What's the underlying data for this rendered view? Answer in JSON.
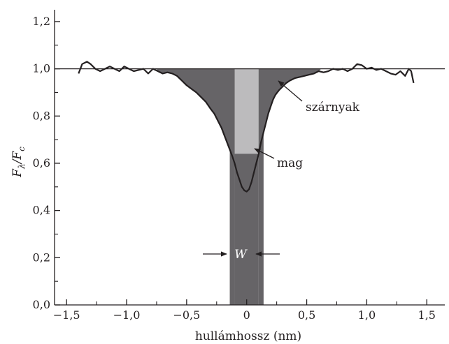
{
  "chart_data": {
    "type": "line",
    "title": "",
    "xlabel": "hullámhossz (nm)",
    "ylabel_main": "F",
    "ylabel_sub1": "λ",
    "ylabel_mid": "/F",
    "ylabel_sub2": "c",
    "xlim": [
      -1.6,
      1.65
    ],
    "ylim": [
      0.0,
      1.25
    ],
    "x_ticks": [
      -1.5,
      -1.0,
      -0.5,
      0.0,
      0.5,
      1.0,
      1.5
    ],
    "x_tick_labels": [
      "−1,5",
      "−1,0",
      "−0,5",
      "0",
      "0,5",
      "1,0",
      "1,5"
    ],
    "y_ticks": [
      0.0,
      0.2,
      0.4,
      0.6,
      0.8,
      1.0,
      1.2
    ],
    "y_tick_labels": [
      "0,0",
      "0,2",
      "0,4",
      "0,6",
      "0,8",
      "1,0",
      "1,2"
    ],
    "grid": false,
    "continuum_level": 1.0,
    "series": [
      {
        "x": [
          -1.4,
          -1.37,
          -1.33,
          -1.3,
          -1.26,
          -1.22,
          -1.18,
          -1.14,
          -1.1,
          -1.06,
          -1.02,
          -0.98,
          -0.94,
          -0.9,
          -0.86,
          -0.82,
          -0.78,
          -0.74,
          -0.7,
          -0.66,
          -0.62,
          -0.58,
          -0.54,
          -0.5,
          -0.46,
          -0.42,
          -0.38,
          -0.34,
          -0.3,
          -0.27,
          -0.24,
          -0.21,
          -0.18,
          -0.15,
          -0.12,
          -0.1,
          -0.08,
          -0.06,
          -0.04,
          -0.02,
          0.0,
          0.02,
          0.04,
          0.06,
          0.08,
          0.1,
          0.12,
          0.14,
          0.16,
          0.18,
          0.2,
          0.22,
          0.24,
          0.27,
          0.3,
          0.33,
          0.36,
          0.4,
          0.44,
          0.48,
          0.52,
          0.56,
          0.6,
          0.64,
          0.68,
          0.72,
          0.76,
          0.8,
          0.84,
          0.88,
          0.92,
          0.96,
          1.0,
          1.04,
          1.08,
          1.12,
          1.16,
          1.2,
          1.24,
          1.28,
          1.32,
          1.35,
          1.37,
          1.39
        ],
        "y": [
          0.98,
          1.02,
          1.03,
          1.02,
          1.0,
          0.99,
          1.0,
          1.01,
          1.0,
          0.99,
          1.01,
          1.0,
          0.99,
          0.995,
          1.0,
          0.98,
          1.0,
          0.99,
          0.98,
          0.985,
          0.98,
          0.97,
          0.95,
          0.93,
          0.915,
          0.9,
          0.88,
          0.86,
          0.83,
          0.81,
          0.78,
          0.75,
          0.71,
          0.67,
          0.63,
          0.6,
          0.56,
          0.53,
          0.5,
          0.485,
          0.48,
          0.49,
          0.52,
          0.56,
          0.6,
          0.64,
          0.69,
          0.73,
          0.77,
          0.81,
          0.84,
          0.87,
          0.89,
          0.91,
          0.925,
          0.94,
          0.95,
          0.96,
          0.965,
          0.97,
          0.975,
          0.98,
          0.99,
          0.985,
          0.99,
          1.0,
          0.995,
          1.0,
          0.99,
          1.0,
          1.02,
          1.015,
          1.0,
          1.005,
          0.995,
          1.0,
          0.99,
          0.98,
          0.975,
          0.99,
          0.97,
          1.0,
          0.99,
          0.94
        ]
      }
    ],
    "core_band": [
      -0.1,
      0.1
    ],
    "annotations": {
      "wings_label": "szárnyak",
      "core_label": "mag",
      "width_label": "W"
    },
    "colors": {
      "wing_fill": "#666467",
      "core_fill": "#bcbbbd",
      "line": "#231f20"
    }
  }
}
